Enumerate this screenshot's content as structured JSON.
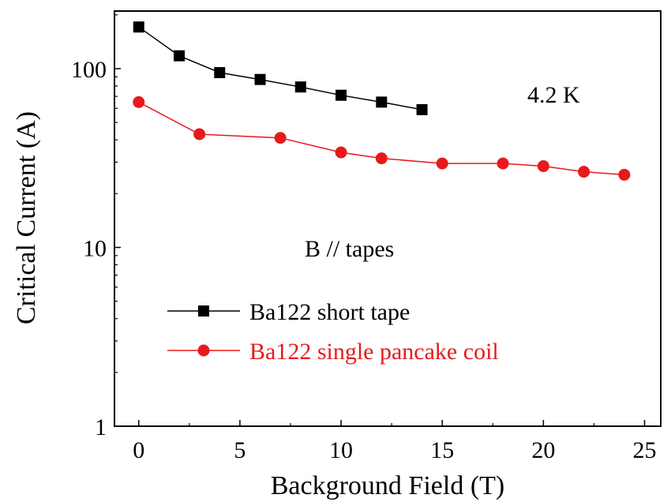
{
  "chart_data": {
    "type": "line",
    "xlabel": "Background Field (T)",
    "ylabel": "Critical Current (A)",
    "xlim": [
      -1.2,
      25.8
    ],
    "ylim": [
      1,
      210
    ],
    "yscale": "log",
    "xticks": [
      0,
      5,
      10,
      15,
      20,
      25
    ],
    "yticks": [
      1,
      10,
      100
    ],
    "xtick_labels": [
      "0",
      "5",
      "10",
      "15",
      "20",
      "25"
    ],
    "ytick_labels": [
      "1",
      "10",
      "100"
    ],
    "grid": false,
    "legend_position": "lower-left",
    "annotations": [
      "4.2 K",
      "B // tapes"
    ],
    "series": [
      {
        "name": "Ba122 short tape",
        "color": "#000000",
        "marker": "square",
        "x": [
          0,
          2,
          4,
          6,
          8,
          10,
          12,
          14
        ],
        "y": [
          171,
          118,
          95,
          87,
          79,
          71,
          65,
          59
        ]
      },
      {
        "name": "Ba122 single pancake coil",
        "color": "#e8191c",
        "marker": "circle",
        "x": [
          0,
          3,
          7,
          10,
          12,
          15,
          18,
          20,
          22,
          24
        ],
        "y": [
          65,
          43,
          41,
          34,
          31.5,
          29.5,
          29.5,
          28.5,
          26.5,
          25.5
        ]
      }
    ]
  }
}
